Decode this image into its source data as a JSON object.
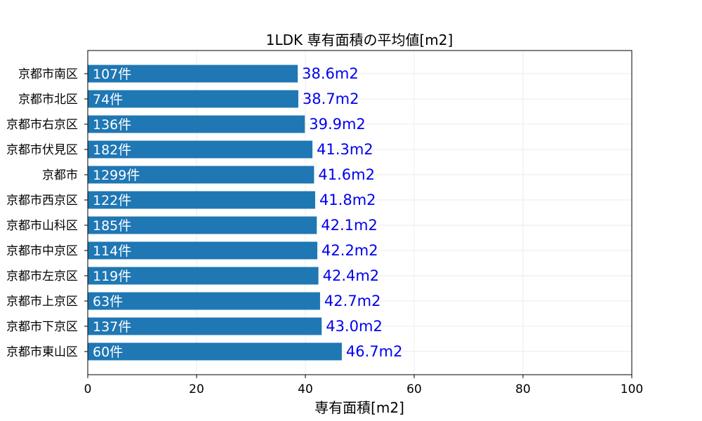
{
  "chart_data": {
    "type": "bar",
    "orientation": "horizontal",
    "title": "1LDK 専有面積の平均値[m2]",
    "xlabel": "専有面積[m2]",
    "ylabel": "",
    "xlim": [
      0,
      100
    ],
    "xticks": [
      "0",
      "20",
      "40",
      "60",
      "80",
      "100"
    ],
    "grid": true,
    "colors": {
      "bar": "#1f77b4",
      "count_label": "#ffffff",
      "value_label": "#0000ee"
    },
    "categories": [
      "京都市南区",
      "京都市北区",
      "京都市右京区",
      "京都市伏見区",
      "京都市",
      "京都市西京区",
      "京都市山科区",
      "京都市中京区",
      "京都市左京区",
      "京都市上京区",
      "京都市下京区",
      "京都市東山区"
    ],
    "values": [
      38.6,
      38.7,
      39.9,
      41.3,
      41.6,
      41.8,
      42.1,
      42.2,
      42.4,
      42.7,
      43.0,
      46.7
    ],
    "value_labels": [
      "38.6m2",
      "38.7m2",
      "39.9m2",
      "41.3m2",
      "41.6m2",
      "41.8m2",
      "42.1m2",
      "42.2m2",
      "42.4m2",
      "42.7m2",
      "43.0m2",
      "46.7m2"
    ],
    "count_labels": [
      "107件",
      "74件",
      "136件",
      "182件",
      "1299件",
      "122件",
      "185件",
      "114件",
      "119件",
      "63件",
      "137件",
      "60件"
    ]
  }
}
